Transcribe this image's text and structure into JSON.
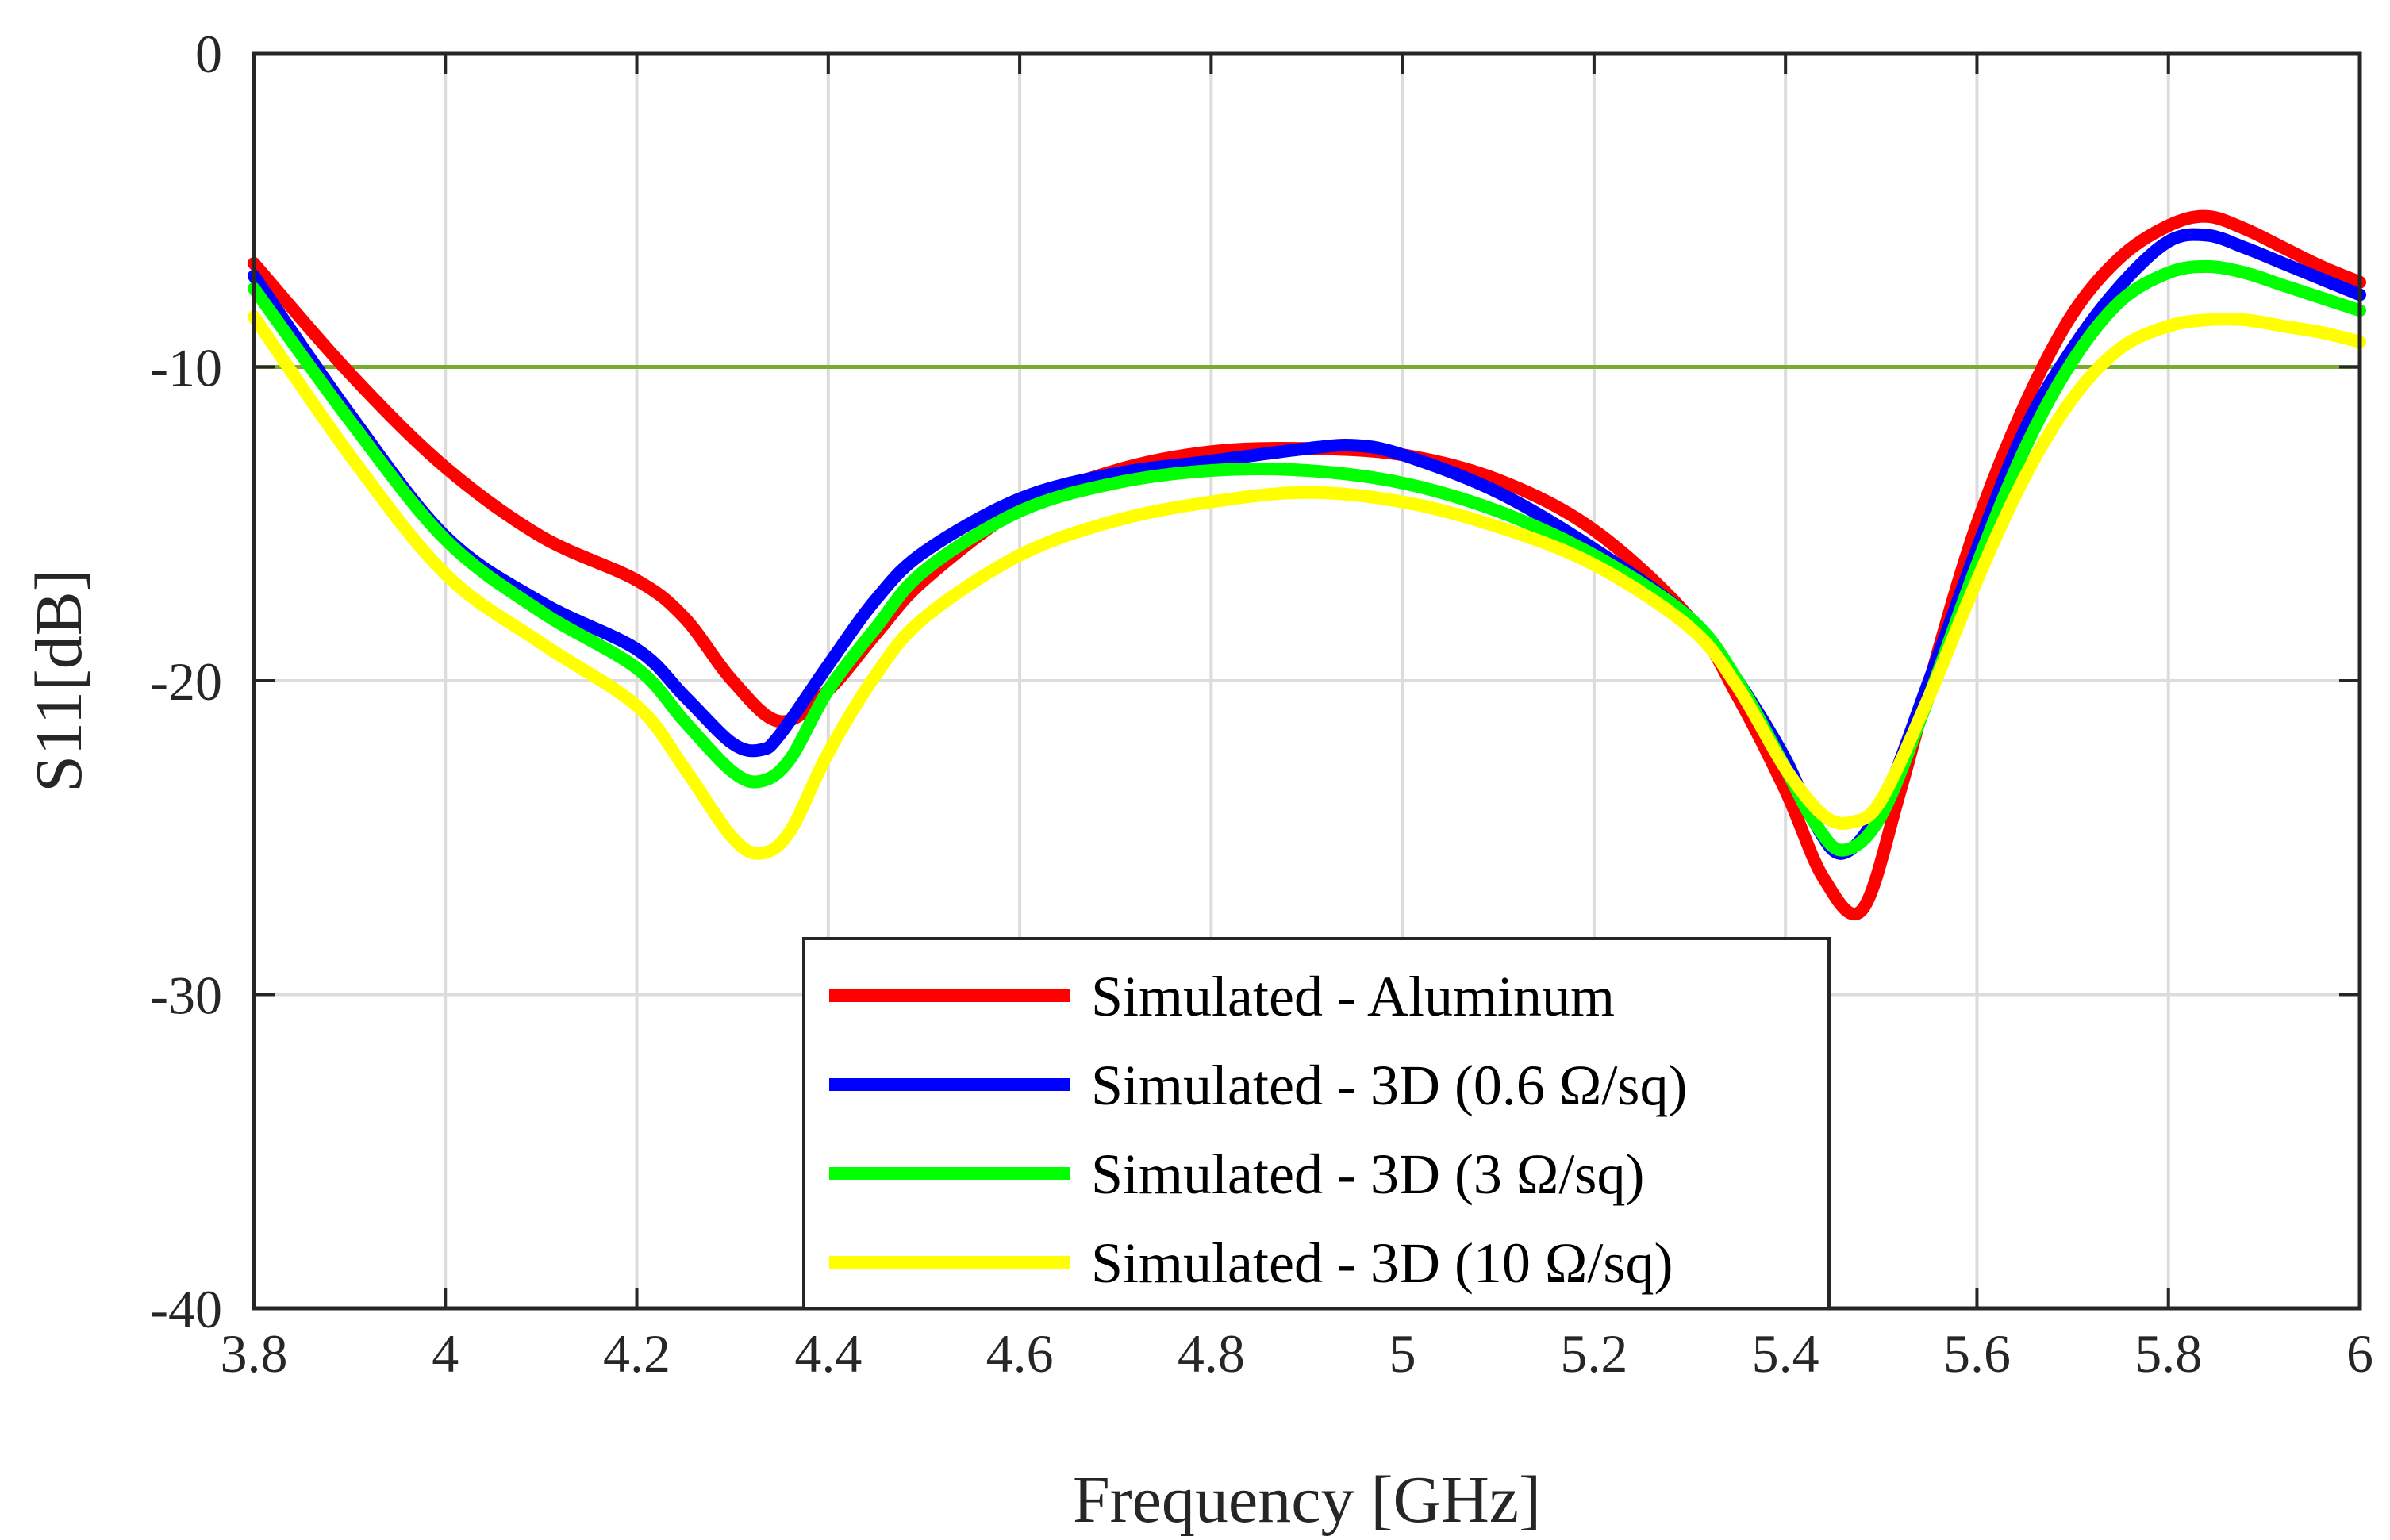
{
  "chart_data": {
    "type": "line",
    "xlabel": "Frequency [GHz]",
    "ylabel": "S11[dB]",
    "xlim": [
      3.8,
      6.0
    ],
    "ylim": [
      -40,
      0
    ],
    "grid": true,
    "legend_position": "bottom-center",
    "x_ticks": [
      3.8,
      4.0,
      4.2,
      4.4,
      4.6,
      4.8,
      5.0,
      5.2,
      5.4,
      5.6,
      5.8,
      6.0
    ],
    "x_tick_labels": [
      "3.8",
      "4",
      "4.2",
      "4.4",
      "4.6",
      "4.8",
      "5",
      "5.2",
      "5.4",
      "5.6",
      "5.8",
      "6"
    ],
    "y_ticks": [
      0,
      -10,
      -20,
      -30,
      -40
    ],
    "y_tick_labels": [
      "0",
      "-10",
      "-20",
      "-30",
      "-40"
    ],
    "reference_line": {
      "y": -10,
      "color": "#77ac30"
    },
    "series": [
      {
        "name": "Simulated - Aluminum",
        "color": "#ff0000",
        "x": [
          3.8,
          3.9,
          4.0,
          4.1,
          4.2,
          4.25,
          4.3,
          4.35,
          4.4,
          4.45,
          4.5,
          4.6,
          4.7,
          4.8,
          4.9,
          5.0,
          5.1,
          5.2,
          5.3,
          5.35,
          5.4,
          5.44,
          5.48,
          5.52,
          5.56,
          5.6,
          5.65,
          5.7,
          5.75,
          5.8,
          5.84,
          5.88,
          5.92,
          5.96,
          6.0
        ],
        "y": [
          -6.7,
          -10.2,
          -13.2,
          -15.4,
          -16.8,
          -18.0,
          -20.0,
          -21.3,
          -20.3,
          -18.5,
          -16.8,
          -14.5,
          -13.3,
          -12.7,
          -12.6,
          -12.8,
          -13.6,
          -15.2,
          -18.0,
          -20.5,
          -23.5,
          -26.3,
          -27.3,
          -23.5,
          -19.0,
          -15.0,
          -11.2,
          -8.3,
          -6.5,
          -5.5,
          -5.2,
          -5.6,
          -6.2,
          -6.8,
          -7.3
        ]
      },
      {
        "name": "Simulated - 3D (0.6 Ω/sq)",
        "color": "#0000ff",
        "x": [
          3.8,
          3.9,
          4.0,
          4.1,
          4.2,
          4.25,
          4.3,
          4.33,
          4.35,
          4.4,
          4.45,
          4.5,
          4.6,
          4.7,
          4.8,
          4.9,
          4.95,
          5.0,
          5.1,
          5.2,
          5.3,
          5.35,
          5.4,
          5.43,
          5.46,
          5.5,
          5.55,
          5.6,
          5.65,
          5.7,
          5.75,
          5.8,
          5.84,
          5.88,
          5.92,
          5.96,
          6.0
        ],
        "y": [
          -7.1,
          -11.5,
          -15.4,
          -17.5,
          -19.0,
          -20.5,
          -22.0,
          -22.2,
          -21.7,
          -19.5,
          -17.4,
          -15.9,
          -14.2,
          -13.4,
          -13.0,
          -12.6,
          -12.5,
          -12.8,
          -14.0,
          -15.8,
          -18.0,
          -20.0,
          -22.5,
          -24.5,
          -25.5,
          -24.0,
          -20.0,
          -15.8,
          -12.0,
          -9.4,
          -7.4,
          -6.0,
          -5.8,
          -6.2,
          -6.7,
          -7.2,
          -7.7
        ]
      },
      {
        "name": "Simulated - 3D (3 Ω/sq)",
        "color": "#00ff00",
        "x": [
          3.8,
          3.9,
          4.0,
          4.1,
          4.2,
          4.25,
          4.3,
          4.33,
          4.36,
          4.4,
          4.45,
          4.5,
          4.6,
          4.7,
          4.8,
          4.9,
          5.0,
          5.1,
          5.2,
          5.3,
          5.35,
          5.4,
          5.43,
          5.46,
          5.5,
          5.55,
          5.6,
          5.65,
          5.7,
          5.75,
          5.8,
          5.84,
          5.88,
          5.92,
          5.96,
          6.0
        ],
        "y": [
          -7.5,
          -11.7,
          -15.5,
          -17.8,
          -19.6,
          -21.3,
          -22.9,
          -23.2,
          -22.5,
          -20.3,
          -18.3,
          -16.5,
          -14.6,
          -13.7,
          -13.3,
          -13.3,
          -13.7,
          -14.6,
          -16.0,
          -18.0,
          -20.0,
          -22.8,
          -24.5,
          -25.4,
          -24.3,
          -20.5,
          -16.3,
          -12.6,
          -9.8,
          -7.9,
          -7.0,
          -6.8,
          -7.0,
          -7.4,
          -7.8,
          -8.2
        ]
      },
      {
        "name": "Simulated - 3D (10 Ω/sq)",
        "color": "#ffff00",
        "x": [
          3.8,
          3.9,
          4.0,
          4.1,
          4.2,
          4.25,
          4.3,
          4.33,
          4.36,
          4.4,
          4.45,
          4.5,
          4.6,
          4.7,
          4.8,
          4.9,
          5.0,
          5.1,
          5.2,
          5.3,
          5.35,
          5.4,
          5.44,
          5.47,
          5.5,
          5.55,
          5.6,
          5.65,
          5.7,
          5.75,
          5.8,
          5.84,
          5.88,
          5.92,
          5.96,
          6.0
        ],
        "y": [
          -8.4,
          -12.8,
          -16.6,
          -18.8,
          -20.8,
          -22.8,
          -25.0,
          -25.5,
          -24.8,
          -22.3,
          -19.8,
          -18.0,
          -16.0,
          -14.9,
          -14.3,
          -14.0,
          -14.3,
          -15.1,
          -16.3,
          -18.3,
          -20.2,
          -22.8,
          -24.3,
          -24.5,
          -23.8,
          -20.5,
          -16.8,
          -13.5,
          -11.0,
          -9.4,
          -8.7,
          -8.5,
          -8.5,
          -8.7,
          -8.9,
          -9.2
        ]
      }
    ]
  }
}
